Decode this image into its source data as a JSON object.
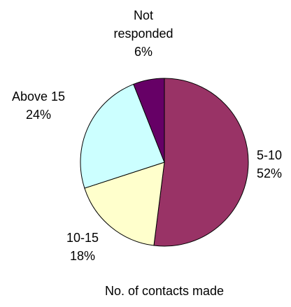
{
  "chart_data": {
    "type": "pie",
    "title": "",
    "xlabel": "No. of contacts made",
    "start_angle_deg": 0,
    "direction": "clockwise",
    "slices": [
      {
        "label_lines": [
          "5-10"
        ],
        "percent_label": "52%",
        "value": 52,
        "color": "#993366"
      },
      {
        "label_lines": [
          "10-15"
        ],
        "percent_label": "18%",
        "value": 18,
        "color": "#FFFFCC"
      },
      {
        "label_lines": [
          "Above 15"
        ],
        "percent_label": "24%",
        "value": 24,
        "color": "#CCFFFF"
      },
      {
        "label_lines": [
          "Not",
          "responded"
        ],
        "percent_label": "6%",
        "value": 6,
        "color": "#660066"
      }
    ]
  }
}
